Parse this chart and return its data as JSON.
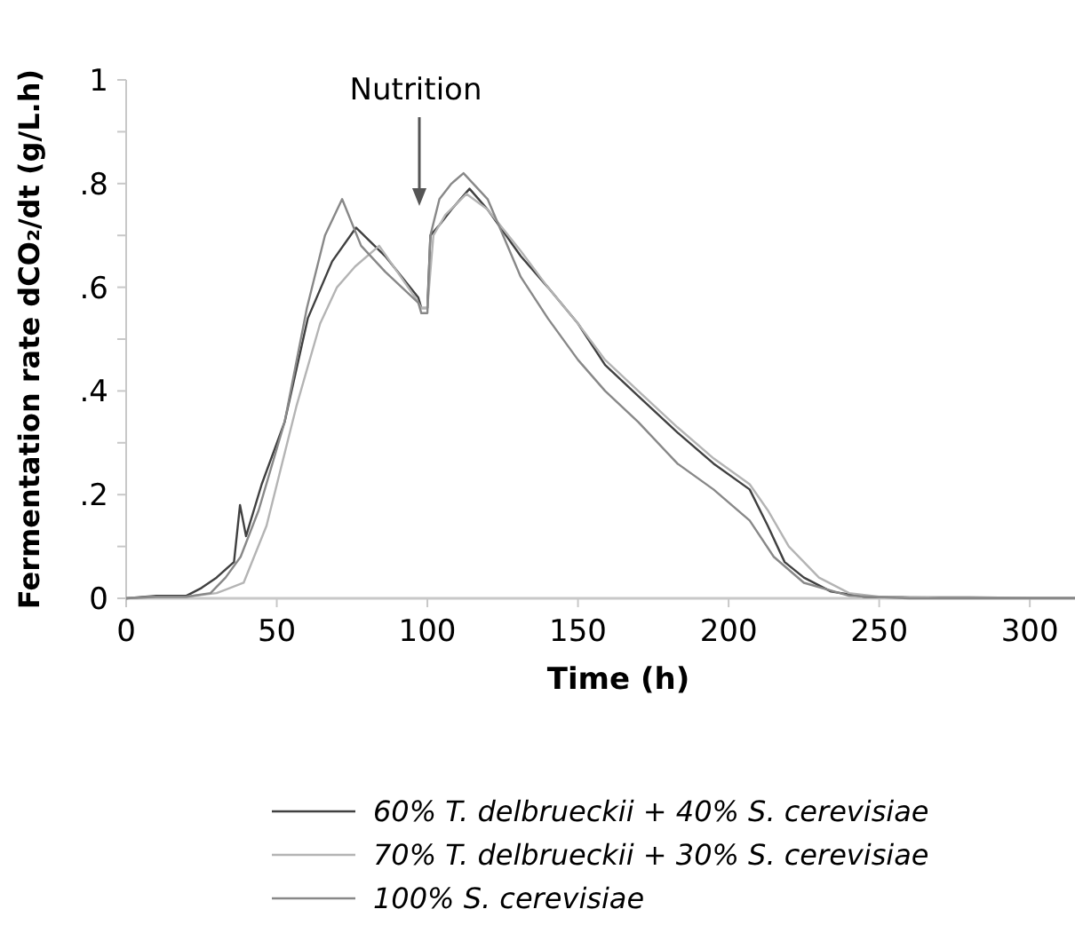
{
  "chart_data": {
    "type": "line",
    "xlabel": "Time (h)",
    "ylabel": "Fermentation rate dCO₂/dt (g/L.h)",
    "xlim": [
      0,
      315
    ],
    "ylim": [
      0,
      1
    ],
    "xticks": [
      0,
      50,
      100,
      150,
      200,
      250,
      300
    ],
    "yticks": [
      0,
      {
        "value": 0.1,
        "label": null
      },
      {
        "value": 0.2,
        "label": ".2"
      },
      {
        "value": 0.3,
        "label": null
      },
      {
        "value": 0.4,
        "label": ".4"
      },
      {
        "value": 0.5,
        "label": null
      },
      {
        "value": 0.6,
        "label": ".6"
      },
      {
        "value": 0.7,
        "label": null
      },
      {
        "value": 0.8,
        "label": ".8"
      },
      {
        "value": 0.9,
        "label": null
      },
      1
    ],
    "grid": false,
    "legend": "bottom",
    "marker": "none",
    "line_style": "solid",
    "annotations": [
      "Nutrition"
    ],
    "series": [
      {
        "name": "60% T. delbrueckii + 40% S. cerevisiae",
        "color": "#404040",
        "x": [
          0,
          10,
          20,
          25,
          30,
          35.8,
          37.8,
          39.8,
          45,
          52.6,
          60.3,
          68.4,
          76.3,
          86,
          97,
          98,
          100,
          101,
          104,
          108,
          114,
          120,
          131,
          140,
          150,
          159,
          170,
          183,
          195,
          207,
          213,
          218.6,
          225,
          234,
          245,
          260,
          280,
          300,
          315
        ],
        "values": [
          0,
          0.005,
          0.005,
          0.02,
          0.04,
          0.07,
          0.18,
          0.12,
          0.22,
          0.34,
          0.54,
          0.65,
          0.715,
          0.66,
          0.58,
          0.56,
          0.56,
          0.7,
          0.72,
          0.75,
          0.79,
          0.75,
          0.66,
          0.6,
          0.53,
          0.45,
          0.39,
          0.32,
          0.26,
          0.21,
          0.14,
          0.07,
          0.04,
          0.013,
          0.003,
          0.002,
          0.002,
          0.001,
          0.001
        ]
      },
      {
        "name": "70% T. delbrueckii + 30% S. cerevisiae",
        "color": "#b4b4b4",
        "x": [
          0,
          10,
          20,
          30,
          39,
          46.6,
          56.5,
          64.4,
          70,
          76,
          84,
          90,
          96,
          98,
          100,
          102,
          106,
          113,
          120,
          131,
          140,
          150,
          159,
          170,
          183,
          195,
          207,
          213,
          220,
          230,
          240,
          250,
          270,
          300,
          315
        ],
        "values": [
          0,
          0.003,
          0.003,
          0.01,
          0.03,
          0.14,
          0.37,
          0.53,
          0.6,
          0.64,
          0.68,
          0.63,
          0.58,
          0.56,
          0.56,
          0.7,
          0.74,
          0.78,
          0.75,
          0.67,
          0.6,
          0.53,
          0.46,
          0.4,
          0.33,
          0.27,
          0.22,
          0.17,
          0.1,
          0.04,
          0.01,
          0.003,
          0.001,
          0.001,
          0.001
        ]
      },
      {
        "name": "100% S. cerevisiae",
        "color": "#888888",
        "x": [
          0,
          10,
          20,
          28,
          33,
          38,
          44,
          52.6,
          60,
          66,
          71.7,
          78,
          86,
          97,
          98,
          100,
          101,
          104,
          108,
          112,
          120,
          131,
          140,
          150,
          159,
          170,
          183,
          195,
          207,
          215,
          225,
          240,
          260,
          280,
          300,
          315
        ],
        "values": [
          0,
          0.003,
          0.003,
          0.01,
          0.04,
          0.08,
          0.17,
          0.34,
          0.56,
          0.7,
          0.77,
          0.68,
          0.63,
          0.57,
          0.55,
          0.55,
          0.7,
          0.77,
          0.8,
          0.82,
          0.77,
          0.62,
          0.54,
          0.46,
          0.4,
          0.34,
          0.26,
          0.21,
          0.15,
          0.08,
          0.03,
          0.005,
          0,
          0,
          0,
          0
        ]
      }
    ]
  }
}
